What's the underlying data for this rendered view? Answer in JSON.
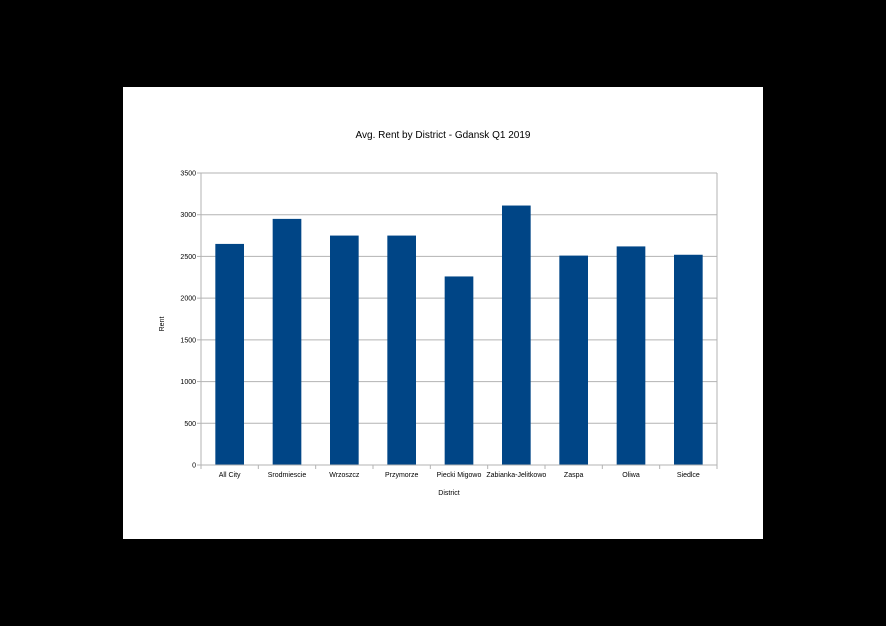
{
  "chart_data": {
    "type": "bar",
    "title": "Avg. Rent by District - Gdansk Q1 2019",
    "xlabel": "District",
    "ylabel": "Rent",
    "categories": [
      "All City",
      "Srodmiescie",
      "Wrzoszcz",
      "Przymorze",
      "Piecki Migowo",
      "Zabianka-Jelitkowo",
      "Zaspa",
      "Oliwa",
      "Siedlce"
    ],
    "values": [
      2650,
      2950,
      2750,
      2750,
      2260,
      3110,
      2510,
      2620,
      2520
    ],
    "ylim": [
      0,
      3500
    ],
    "yticks": [
      0,
      500,
      1000,
      1500,
      2000,
      2500,
      3000,
      3500
    ],
    "grid": true,
    "legend": "none",
    "bar_color": "#004586",
    "grid_color": "#b3b3b3"
  }
}
